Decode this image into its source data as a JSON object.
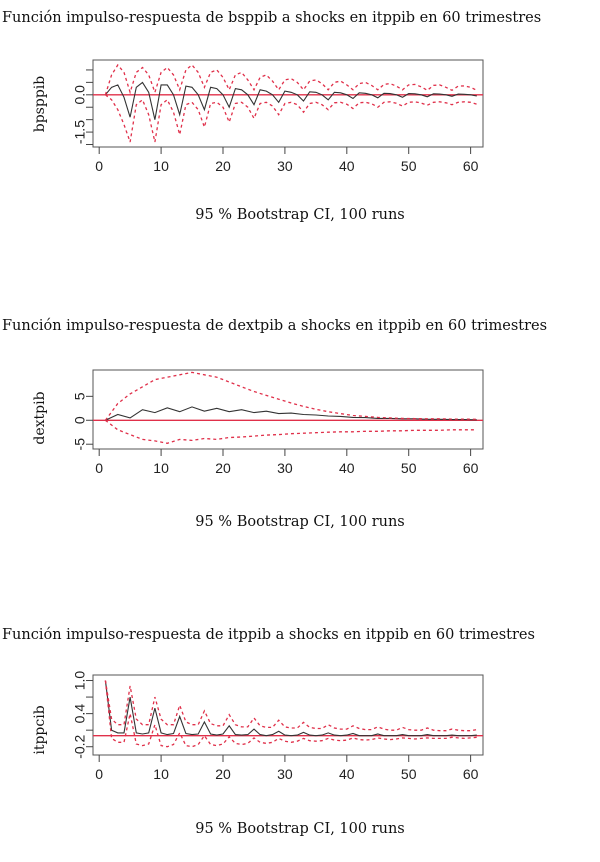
{
  "chart_data": [
    {
      "type": "line",
      "title": "Función impulso-respuesta de bsppib a shocks en itppib en 60 trimestres",
      "ylabel": "bpsppib",
      "xlabel": "95 % Bootstrap CI, 100 runs",
      "xlim": [
        -1,
        62
      ],
      "ylim": [
        -2.1,
        1.4
      ],
      "xticks": [
        0,
        10,
        20,
        30,
        40,
        50,
        60
      ],
      "yticks": [
        -1.5,
        0.0
      ],
      "ytick_labels": [
        "-1.5",
        "0.0"
      ],
      "minor_yticks": [
        -2.0,
        -1.0,
        -0.5,
        0.5,
        1.0
      ],
      "zero_line": true,
      "colors": {
        "response": "#333333",
        "ci": "#e0304a",
        "zero": "#e0304a"
      },
      "series": [
        {
          "role": "response",
          "x": [
            1,
            2,
            3,
            4,
            5,
            6,
            7,
            8,
            9,
            10,
            11,
            12,
            13,
            14,
            15,
            16,
            17,
            18,
            19,
            20,
            21,
            22,
            23,
            24,
            25,
            26,
            27,
            28,
            29,
            30,
            31,
            32,
            33,
            34,
            35,
            36,
            37,
            38,
            39,
            40,
            41,
            42,
            43,
            44,
            45,
            46,
            47,
            48,
            49,
            50,
            51,
            52,
            53,
            54,
            55,
            56,
            57,
            58,
            59,
            60,
            61
          ],
          "values": [
            0.0,
            0.3,
            0.4,
            -0.1,
            -0.9,
            0.3,
            0.5,
            0.1,
            -1.0,
            0.4,
            0.4,
            0.0,
            -0.8,
            0.35,
            0.3,
            0.0,
            -0.6,
            0.3,
            0.25,
            0.0,
            -0.5,
            0.25,
            0.2,
            0.0,
            -0.4,
            0.2,
            0.15,
            0.0,
            -0.3,
            0.15,
            0.1,
            0.0,
            -0.25,
            0.12,
            0.1,
            0.0,
            -0.2,
            0.1,
            0.08,
            0.0,
            -0.15,
            0.08,
            0.06,
            0.0,
            -0.12,
            0.06,
            0.05,
            0.0,
            -0.1,
            0.05,
            0.04,
            0.0,
            -0.08,
            0.04,
            0.03,
            0.0,
            -0.06,
            0.03,
            0.02,
            0.0,
            -0.05
          ]
        },
        {
          "role": "upper",
          "x": [
            1,
            2,
            3,
            4,
            5,
            6,
            7,
            8,
            9,
            10,
            11,
            12,
            13,
            14,
            15,
            16,
            17,
            18,
            19,
            20,
            21,
            22,
            23,
            24,
            25,
            26,
            27,
            28,
            29,
            30,
            31,
            32,
            33,
            34,
            35,
            36,
            37,
            38,
            39,
            40,
            41,
            42,
            43,
            44,
            45,
            46,
            47,
            48,
            49,
            50,
            51,
            52,
            53,
            54,
            55,
            56,
            57,
            58,
            59,
            60,
            61
          ],
          "values": [
            0.0,
            0.8,
            1.2,
            0.9,
            0.1,
            0.9,
            1.1,
            0.8,
            0.1,
            0.9,
            1.1,
            0.8,
            0.2,
            1.0,
            1.2,
            0.9,
            0.3,
            0.9,
            1.0,
            0.7,
            0.2,
            0.8,
            0.9,
            0.6,
            0.2,
            0.7,
            0.8,
            0.55,
            0.2,
            0.6,
            0.65,
            0.5,
            0.2,
            0.55,
            0.6,
            0.45,
            0.2,
            0.5,
            0.55,
            0.4,
            0.2,
            0.45,
            0.5,
            0.38,
            0.2,
            0.42,
            0.45,
            0.35,
            0.2,
            0.4,
            0.42,
            0.32,
            0.18,
            0.38,
            0.4,
            0.3,
            0.18,
            0.35,
            0.36,
            0.3,
            0.18
          ]
        },
        {
          "role": "lower",
          "x": [
            1,
            2,
            3,
            4,
            5,
            6,
            7,
            8,
            9,
            10,
            11,
            12,
            13,
            14,
            15,
            16,
            17,
            18,
            19,
            20,
            21,
            22,
            23,
            24,
            25,
            26,
            27,
            28,
            29,
            30,
            31,
            32,
            33,
            34,
            35,
            36,
            37,
            38,
            39,
            40,
            41,
            42,
            43,
            44,
            45,
            46,
            47,
            48,
            49,
            50,
            51,
            52,
            53,
            54,
            55,
            56,
            57,
            58,
            59,
            60,
            61
          ],
          "values": [
            0.0,
            -0.2,
            -0.6,
            -1.2,
            -1.9,
            -0.4,
            -0.2,
            -0.8,
            -1.9,
            -0.4,
            -0.2,
            -0.7,
            -1.6,
            -0.4,
            -0.3,
            -0.6,
            -1.3,
            -0.35,
            -0.3,
            -0.5,
            -1.1,
            -0.35,
            -0.3,
            -0.5,
            -0.95,
            -0.35,
            -0.3,
            -0.45,
            -0.8,
            -0.35,
            -0.3,
            -0.4,
            -0.7,
            -0.35,
            -0.3,
            -0.4,
            -0.6,
            -0.32,
            -0.3,
            -0.38,
            -0.55,
            -0.32,
            -0.3,
            -0.36,
            -0.5,
            -0.3,
            -0.28,
            -0.34,
            -0.45,
            -0.3,
            -0.28,
            -0.33,
            -0.42,
            -0.3,
            -0.28,
            -0.32,
            -0.4,
            -0.3,
            -0.28,
            -0.3,
            -0.38
          ]
        }
      ]
    },
    {
      "type": "line",
      "title": "Función impulso-respuesta de dextpib a shocks en itppib en 60 trimestres",
      "ylabel": "dextpib",
      "xlabel": "95 % Bootstrap CI, 100 runs",
      "xlim": [
        -1,
        62
      ],
      "ylim": [
        -6,
        10.5
      ],
      "xticks": [
        0,
        10,
        20,
        30,
        40,
        50,
        60
      ],
      "yticks": [
        -5,
        0,
        5
      ],
      "ytick_labels": [
        "-5",
        "0",
        "5"
      ],
      "minor_yticks": [],
      "zero_line": true,
      "colors": {
        "response": "#333333",
        "ci": "#e0304a",
        "zero": "#e0304a"
      },
      "series": [
        {
          "role": "response",
          "x": [
            1,
            3,
            5,
            7,
            9,
            11,
            13,
            15,
            17,
            19,
            21,
            23,
            25,
            27,
            29,
            31,
            33,
            35,
            37,
            39,
            41,
            43,
            45,
            47,
            49,
            51,
            53,
            55,
            57,
            59,
            61
          ],
          "values": [
            0,
            1.2,
            0.5,
            2.2,
            1.6,
            2.6,
            1.8,
            2.8,
            1.9,
            2.5,
            1.8,
            2.2,
            1.6,
            1.9,
            1.4,
            1.5,
            1.2,
            1.1,
            0.9,
            0.8,
            0.6,
            0.55,
            0.4,
            0.4,
            0.3,
            0.3,
            0.2,
            0.2,
            0.15,
            0.15,
            0.1
          ]
        },
        {
          "role": "upper",
          "x": [
            1,
            3,
            5,
            7,
            9,
            11,
            13,
            15,
            17,
            19,
            21,
            23,
            25,
            27,
            29,
            31,
            33,
            35,
            37,
            39,
            41,
            43,
            45,
            47,
            49,
            51,
            53,
            55,
            57,
            59,
            61
          ],
          "values": [
            0,
            3.5,
            5.5,
            7.0,
            8.5,
            9.0,
            9.5,
            10.0,
            9.5,
            9.0,
            8.0,
            7.0,
            6.0,
            5.2,
            4.4,
            3.6,
            2.9,
            2.3,
            1.8,
            1.4,
            1.0,
            0.8,
            0.6,
            0.5,
            0.4,
            0.35,
            0.3,
            0.3,
            0.25,
            0.25,
            0.2
          ]
        },
        {
          "role": "lower",
          "x": [
            1,
            3,
            5,
            7,
            9,
            11,
            13,
            15,
            17,
            19,
            21,
            23,
            25,
            27,
            29,
            31,
            33,
            35,
            37,
            39,
            41,
            43,
            45,
            47,
            49,
            51,
            53,
            55,
            57,
            59,
            61
          ],
          "values": [
            0,
            -2.0,
            -3.0,
            -4.0,
            -4.3,
            -4.8,
            -4.0,
            -4.2,
            -3.8,
            -4.0,
            -3.6,
            -3.5,
            -3.3,
            -3.1,
            -3.0,
            -2.8,
            -2.7,
            -2.6,
            -2.5,
            -2.4,
            -2.4,
            -2.3,
            -2.3,
            -2.2,
            -2.2,
            -2.1,
            -2.1,
            -2.1,
            -2.0,
            -2.0,
            -2.0
          ]
        }
      ]
    },
    {
      "type": "line",
      "title": "Función impulso-respuesta de itppib a shocks en itppib en 60 trimestres",
      "ylabel": "itppcib",
      "xlabel": "95 % Bootstrap CI, 100 runs",
      "xlim": [
        -1,
        62
      ],
      "ylim": [
        -0.35,
        1.1
      ],
      "xticks": [
        0,
        10,
        20,
        30,
        40,
        50,
        60
      ],
      "yticks": [
        -0.2,
        0.4,
        1.0
      ],
      "ytick_labels": [
        "-0.2",
        "0.4",
        "1.0"
      ],
      "minor_yticks": [
        0.1,
        0.7
      ],
      "zero_line": true,
      "colors": {
        "response": "#333333",
        "ci": "#e0304a",
        "zero": "#e0304a"
      },
      "series": [
        {
          "role": "response",
          "x": [
            1,
            2,
            3,
            4,
            5,
            6,
            7,
            8,
            9,
            10,
            11,
            12,
            13,
            14,
            15,
            16,
            17,
            18,
            19,
            20,
            21,
            22,
            23,
            24,
            25,
            26,
            27,
            28,
            29,
            30,
            31,
            32,
            33,
            34,
            35,
            36,
            37,
            38,
            39,
            40,
            41,
            42,
            43,
            44,
            45,
            46,
            47,
            48,
            49,
            50,
            51,
            52,
            53,
            54,
            55,
            56,
            57,
            58,
            59,
            60,
            61
          ],
          "values": [
            1.0,
            0.1,
            0.05,
            0.05,
            0.7,
            0.05,
            0.03,
            0.05,
            0.5,
            0.05,
            0.02,
            0.04,
            0.35,
            0.04,
            0.02,
            0.03,
            0.25,
            0.03,
            0.01,
            0.03,
            0.18,
            0.02,
            0.01,
            0.02,
            0.12,
            0.02,
            0.0,
            0.02,
            0.08,
            0.01,
            0.0,
            0.01,
            0.06,
            0.01,
            0.0,
            0.01,
            0.05,
            0.01,
            0.0,
            0.01,
            0.04,
            0.0,
            0.0,
            0.0,
            0.03,
            0.0,
            0.0,
            0.0,
            0.02,
            0.0,
            0.0,
            0.0,
            0.02,
            0.0,
            0.0,
            0.0,
            0.01,
            0.0,
            0.0,
            0.0,
            0.01
          ]
        },
        {
          "role": "upper",
          "x": [
            1,
            2,
            3,
            4,
            5,
            6,
            7,
            8,
            9,
            10,
            11,
            12,
            13,
            14,
            15,
            16,
            17,
            18,
            19,
            20,
            21,
            22,
            23,
            24,
            25,
            26,
            27,
            28,
            29,
            30,
            31,
            32,
            33,
            34,
            35,
            36,
            37,
            38,
            39,
            40,
            41,
            42,
            43,
            44,
            45,
            46,
            47,
            48,
            49,
            50,
            51,
            52,
            53,
            54,
            55,
            56,
            57,
            58,
            59,
            60,
            61
          ],
          "values": [
            1.0,
            0.3,
            0.2,
            0.2,
            0.9,
            0.3,
            0.2,
            0.2,
            0.7,
            0.3,
            0.2,
            0.2,
            0.55,
            0.25,
            0.2,
            0.2,
            0.45,
            0.22,
            0.18,
            0.18,
            0.38,
            0.2,
            0.16,
            0.16,
            0.32,
            0.18,
            0.15,
            0.15,
            0.28,
            0.16,
            0.14,
            0.14,
            0.24,
            0.15,
            0.13,
            0.13,
            0.2,
            0.14,
            0.12,
            0.12,
            0.18,
            0.13,
            0.11,
            0.11,
            0.16,
            0.12,
            0.1,
            0.1,
            0.15,
            0.11,
            0.1,
            0.1,
            0.14,
            0.1,
            0.09,
            0.09,
            0.12,
            0.1,
            0.09,
            0.09,
            0.11
          ]
        },
        {
          "role": "lower",
          "x": [
            1,
            2,
            3,
            4,
            5,
            6,
            7,
            8,
            9,
            10,
            11,
            12,
            13,
            14,
            15,
            16,
            17,
            18,
            19,
            20,
            21,
            22,
            23,
            24,
            25,
            26,
            27,
            28,
            29,
            30,
            31,
            32,
            33,
            34,
            35,
            36,
            37,
            38,
            39,
            40,
            41,
            42,
            43,
            44,
            45,
            46,
            47,
            48,
            49,
            50,
            51,
            52,
            53,
            54,
            55,
            56,
            57,
            58,
            59,
            60,
            61
          ],
          "values": [
            1.0,
            -0.05,
            -0.12,
            -0.12,
            0.4,
            -0.15,
            -0.18,
            -0.15,
            0.2,
            -0.18,
            -0.2,
            -0.16,
            0.05,
            -0.18,
            -0.2,
            -0.16,
            0.0,
            -0.16,
            -0.18,
            -0.15,
            -0.02,
            -0.14,
            -0.16,
            -0.14,
            -0.04,
            -0.12,
            -0.14,
            -0.12,
            -0.05,
            -0.1,
            -0.12,
            -0.1,
            -0.05,
            -0.09,
            -0.1,
            -0.09,
            -0.05,
            -0.08,
            -0.09,
            -0.08,
            -0.04,
            -0.07,
            -0.08,
            -0.07,
            -0.04,
            -0.06,
            -0.07,
            -0.06,
            -0.04,
            -0.05,
            -0.06,
            -0.05,
            -0.04,
            -0.05,
            -0.05,
            -0.05,
            -0.03,
            -0.04,
            -0.05,
            -0.04,
            -0.03
          ]
        }
      ]
    }
  ]
}
